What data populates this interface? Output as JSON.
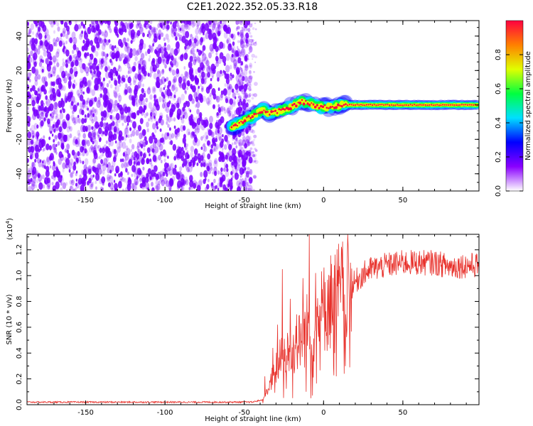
{
  "title": "C2E1.2022.352.05.33.R18",
  "colors": {
    "snr_line": "#e8312b",
    "noise": "#7a00ff"
  },
  "chart_data": [
    {
      "name": "spectrogram",
      "type": "heatmap",
      "xlabel": "Height of straight line (km)",
      "ylabel": "Frequency (Hz)",
      "xlim": [
        -187,
        98
      ],
      "ylim": [
        -50,
        49
      ],
      "xticks": [
        -150,
        -100,
        -50,
        0,
        50
      ],
      "yticks": [
        -40,
        -20,
        0,
        20,
        40
      ],
      "noise_region_x": [
        -187,
        -45
      ],
      "ridge": [
        {
          "x": -58,
          "y": -13
        },
        {
          "x": -52,
          "y": -10
        },
        {
          "x": -46,
          "y": -7
        },
        {
          "x": -42,
          "y": -5
        },
        {
          "x": -38,
          "y": -3
        },
        {
          "x": -34,
          "y": -5
        },
        {
          "x": -30,
          "y": -4
        },
        {
          "x": -26,
          "y": -3
        },
        {
          "x": -22,
          "y": -2
        },
        {
          "x": -18,
          "y": 0
        },
        {
          "x": -14,
          "y": 2
        },
        {
          "x": -10,
          "y": 1
        },
        {
          "x": -6,
          "y": 0
        },
        {
          "x": -2,
          "y": -1
        },
        {
          "x": 2,
          "y": -1
        },
        {
          "x": 6,
          "y": -1
        },
        {
          "x": 10,
          "y": 0
        },
        {
          "x": 20,
          "y": 0
        },
        {
          "x": 40,
          "y": 0
        },
        {
          "x": 60,
          "y": 0
        },
        {
          "x": 80,
          "y": 0
        },
        {
          "x": 98,
          "y": 0
        }
      ]
    },
    {
      "name": "colorbar",
      "type": "heatmap",
      "label": "Normalized spectral amplitude",
      "range": [
        0.0,
        1.0
      ],
      "ticks": [
        "0.0",
        "0.2",
        "0.4",
        "0.6",
        "0.8"
      ],
      "tick_values": [
        0,
        0.2,
        0.4,
        0.6,
        0.8
      ],
      "colormap": [
        "#ffffff",
        "#8a00ff",
        "#0000ff",
        "#00e0ff",
        "#00ff40",
        "#e0ff00",
        "#ff8000",
        "#ff0040"
      ]
    },
    {
      "name": "snr",
      "type": "line",
      "xlabel": "Height of straight line (km)",
      "ylabel": "SNR (10 * v/v)",
      "yscale_label": "(x10",
      "yscale_exp": "4",
      "yscale_close": ")",
      "xlim": [
        -187,
        98
      ],
      "ylim": [
        0,
        1.32
      ],
      "xticks": [
        -150,
        -100,
        -50,
        0,
        50
      ],
      "yticks": [
        "0.0",
        "0.2",
        "0.4",
        "0.6",
        "0.8",
        "1.0",
        "1.2"
      ],
      "ytick_values": [
        0,
        0.2,
        0.4,
        0.6,
        0.8,
        1.0,
        1.2
      ],
      "envelope": [
        {
          "x": -187,
          "y": 0.02
        },
        {
          "x": -45,
          "y": 0.02
        },
        {
          "x": -38,
          "y": 0.04
        },
        {
          "x": -34,
          "y": 0.15
        },
        {
          "x": -30,
          "y": 0.28
        },
        {
          "x": -26,
          "y": 0.38
        },
        {
          "x": -22,
          "y": 0.4
        },
        {
          "x": -18,
          "y": 0.45
        },
        {
          "x": -14,
          "y": 0.5
        },
        {
          "x": -10,
          "y": 0.6
        },
        {
          "x": -6,
          "y": 0.62
        },
        {
          "x": -2,
          "y": 0.7
        },
        {
          "x": 2,
          "y": 0.78
        },
        {
          "x": 6,
          "y": 0.82
        },
        {
          "x": 10,
          "y": 0.86
        },
        {
          "x": 14,
          "y": 0.88
        },
        {
          "x": 18,
          "y": 0.92
        },
        {
          "x": 22,
          "y": 0.98
        },
        {
          "x": 26,
          "y": 1.02
        },
        {
          "x": 30,
          "y": 1.05
        },
        {
          "x": 40,
          "y": 1.08
        },
        {
          "x": 50,
          "y": 1.1
        },
        {
          "x": 60,
          "y": 1.1
        },
        {
          "x": 70,
          "y": 1.1
        },
        {
          "x": 80,
          "y": 1.07
        },
        {
          "x": 90,
          "y": 1.08
        },
        {
          "x": 98,
          "y": 1.08
        }
      ],
      "spikes": [
        {
          "x": -37,
          "y": 0.22
        },
        {
          "x": -32,
          "y": 0.44
        },
        {
          "x": -29,
          "y": 0.62
        },
        {
          "x": -26,
          "y": 1.05
        },
        {
          "x": -24,
          "y": 0.25
        },
        {
          "x": -21,
          "y": 0.82
        },
        {
          "x": -17,
          "y": 0.7
        },
        {
          "x": -13,
          "y": 0.98
        },
        {
          "x": -11,
          "y": 0.1
        },
        {
          "x": -9,
          "y": 1.32
        },
        {
          "x": -8,
          "y": 0.05
        },
        {
          "x": -5,
          "y": 1.02
        },
        {
          "x": -2,
          "y": 0.55
        },
        {
          "x": 1,
          "y": 0.95
        },
        {
          "x": 4,
          "y": 1.0
        },
        {
          "x": 7,
          "y": 0.4
        },
        {
          "x": 8,
          "y": 0.22
        },
        {
          "x": 11,
          "y": 1.02
        },
        {
          "x": 14,
          "y": 0.7
        },
        {
          "x": 17,
          "y": 1.1
        }
      ]
    }
  ]
}
